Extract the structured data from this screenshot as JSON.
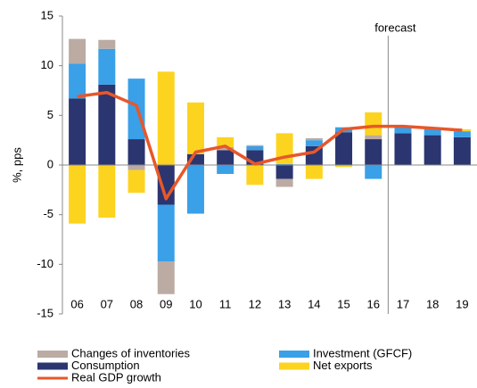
{
  "chart_data": {
    "type": "bar",
    "y_label": "%, pps",
    "annotation": "forecast",
    "categories": [
      "06",
      "07",
      "08",
      "09",
      "10",
      "11",
      "12",
      "13",
      "14",
      "15",
      "16",
      "17",
      "18",
      "19"
    ],
    "ylim": [
      -15,
      15
    ],
    "yticks": [
      -15,
      -10,
      -5,
      0,
      5,
      10,
      15
    ],
    "series": [
      {
        "name": "Consumption",
        "color": "#2b3570",
        "values": [
          6.7,
          8.1,
          2.6,
          -4.0,
          1.1,
          1.5,
          1.5,
          -1.4,
          1.9,
          3.3,
          2.6,
          3.2,
          3.0,
          2.8
        ]
      },
      {
        "name": "Investment (GFCF)",
        "color": "#3aa0e8",
        "values": [
          3.5,
          3.6,
          6.1,
          -5.7,
          -4.9,
          -0.9,
          0.4,
          0.1,
          0.6,
          0.5,
          -1.4,
          0.6,
          0.6,
          0.6
        ]
      },
      {
        "name": "Changes of inventories",
        "color": "#bbaba3",
        "values": [
          2.5,
          0.9,
          -0.5,
          -3.3,
          0,
          0.3,
          0.1,
          -0.8,
          0.2,
          0,
          0.4,
          0,
          0,
          0
        ]
      },
      {
        "name": "Net exports",
        "color": "#fcd41f",
        "values": [
          -5.9,
          -5.3,
          -2.3,
          9.4,
          5.2,
          1.0,
          -2.0,
          3.1,
          -1.4,
          -0.2,
          2.3,
          0.1,
          0.1,
          0.2
        ]
      },
      {
        "name": "Real GDP growth",
        "type": "line",
        "color": "#e8572a",
        "values": [
          6.9,
          7.3,
          6.0,
          -3.4,
          1.3,
          1.9,
          0.1,
          0.8,
          1.3,
          3.6,
          3.9,
          3.9,
          3.7,
          3.5
        ]
      }
    ]
  }
}
